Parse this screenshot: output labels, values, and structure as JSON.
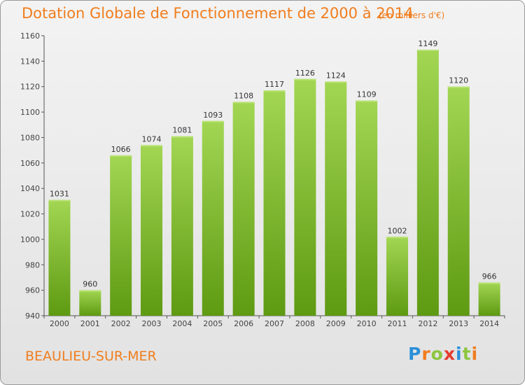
{
  "chart_data": {
    "type": "bar",
    "title": "Dotation Globale de Fonctionnement de 2000 à 2014",
    "subtitle": "(en milliers d'€)",
    "categories": [
      "2000",
      "2001",
      "2002",
      "2003",
      "2004",
      "2005",
      "2006",
      "2007",
      "2008",
      "2009",
      "2010",
      "2011",
      "2012",
      "2013",
      "2014"
    ],
    "values": [
      1031,
      960,
      1066,
      1074,
      1081,
      1093,
      1108,
      1117,
      1126,
      1124,
      1109,
      1002,
      1149,
      1120,
      966
    ],
    "ylim": [
      940,
      1160
    ],
    "yticks": [
      940,
      960,
      980,
      1000,
      1020,
      1040,
      1060,
      1080,
      1100,
      1120,
      1140,
      1160
    ],
    "grid": false,
    "bar_color": "#8cc63f",
    "title_color": "#f07d1e"
  },
  "footer": {
    "commune": "BEAULIEU-SUR-MER"
  },
  "logo": {
    "letters": [
      "P",
      "r",
      "o",
      "x",
      "i",
      "t",
      "i"
    ],
    "colors": [
      "#2b8fd9",
      "#f07d1e",
      "#8cc63f",
      "#e63b2e",
      "#2b8fd9",
      "#8cc63f",
      "#f07d1e"
    ]
  }
}
